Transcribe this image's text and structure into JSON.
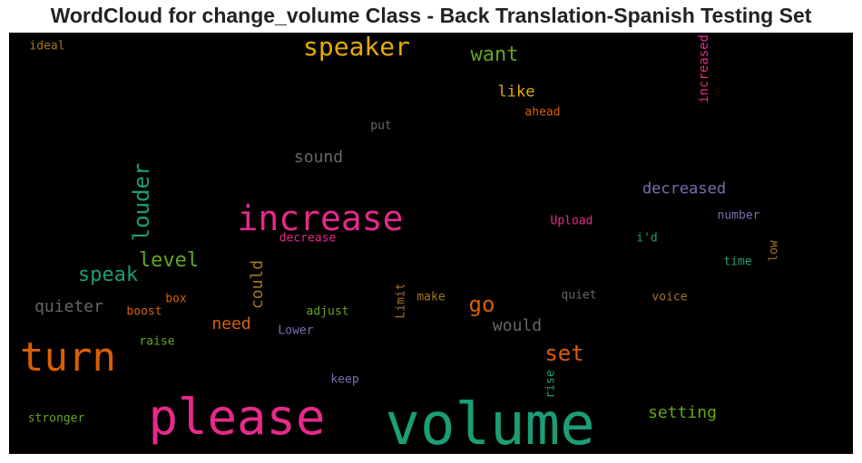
{
  "title": "WordCloud for change_volume Class - Back Translation-Spanish Testing Set",
  "palette": {
    "green": "#1b9e77",
    "orange": "#d95f02",
    "purple": "#7570b3",
    "pink": "#e7298a",
    "lime": "#66a61e",
    "gold": "#e6ab02",
    "brown": "#a6761d",
    "gray": "#666666",
    "background": "#000000"
  },
  "words": [
    {
      "text": "volume",
      "color": "#1b9e77"
    },
    {
      "text": "please",
      "color": "#e7298a"
    },
    {
      "text": "turn",
      "color": "#d95f02"
    },
    {
      "text": "increase",
      "color": "#e7298a"
    },
    {
      "text": "speaker",
      "color": "#e6ab02"
    },
    {
      "text": "louder",
      "color": "#1b9e77"
    },
    {
      "text": "set",
      "color": "#d95f02"
    },
    {
      "text": "speak",
      "color": "#1b9e77"
    },
    {
      "text": "level",
      "color": "#66a61e"
    },
    {
      "text": "want",
      "color": "#66a61e"
    },
    {
      "text": "go",
      "color": "#d95f02"
    },
    {
      "text": "quieter",
      "color": "#666666"
    },
    {
      "text": "decreased",
      "color": "#7570b3"
    },
    {
      "text": "setting",
      "color": "#66a61e"
    },
    {
      "text": "could",
      "color": "#a6761d"
    },
    {
      "text": "sound",
      "color": "#666666"
    },
    {
      "text": "would",
      "color": "#666666"
    },
    {
      "text": "need",
      "color": "#d95f02"
    },
    {
      "text": "like",
      "color": "#e6ab02"
    },
    {
      "text": "increased",
      "color": "#e7298a"
    },
    {
      "text": "ideal",
      "color": "#a6761d"
    },
    {
      "text": "ahead",
      "color": "#d95f02"
    },
    {
      "text": "put",
      "color": "#666666"
    },
    {
      "text": "Upload",
      "color": "#e7298a"
    },
    {
      "text": "number",
      "color": "#7570b3"
    },
    {
      "text": "decrease",
      "color": "#e7298a"
    },
    {
      "text": "i'd",
      "color": "#1b9e77"
    },
    {
      "text": "low",
      "color": "#a6761d"
    },
    {
      "text": "time",
      "color": "#1b9e77"
    },
    {
      "text": "box",
      "color": "#d95f02"
    },
    {
      "text": "boost",
      "color": "#d95f02"
    },
    {
      "text": "adjust",
      "color": "#66a61e"
    },
    {
      "text": "Limit",
      "color": "#a6761d"
    },
    {
      "text": "make",
      "color": "#a6761d"
    },
    {
      "text": "quiet",
      "color": "#666666"
    },
    {
      "text": "voice",
      "color": "#a6761d"
    },
    {
      "text": "Lower",
      "color": "#7570b3"
    },
    {
      "text": "raise",
      "color": "#66a61e"
    },
    {
      "text": "keep",
      "color": "#7570b3"
    },
    {
      "text": "rise",
      "color": "#1b9e77"
    },
    {
      "text": "stronger",
      "color": "#66a61e"
    }
  ]
}
